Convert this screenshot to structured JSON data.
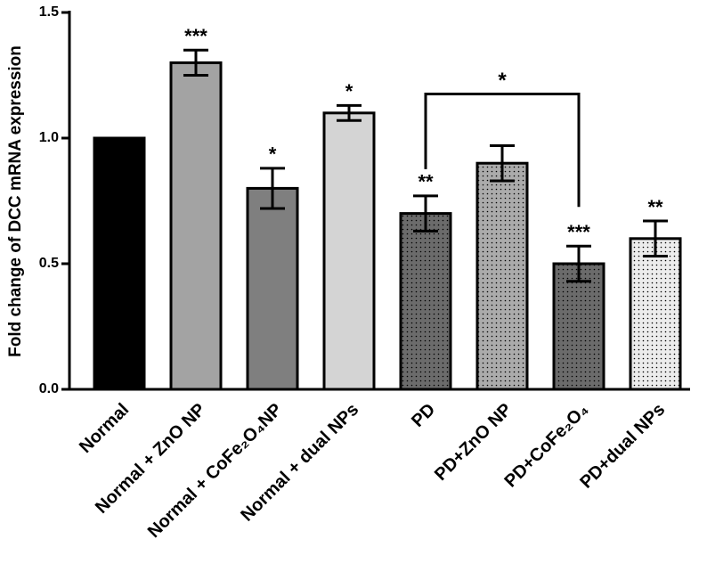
{
  "chart_data": {
    "type": "bar",
    "y_label": "Fold change of DCC mRNA expression",
    "categories": [
      "Normal",
      "Normal + ZnO NP",
      "Normal + CoFe₂O₄NP",
      "Normal + dual NPs",
      "PD",
      "PD+ZnO NP",
      "PD+CoFe₂O₄",
      "PD+dual NPs"
    ],
    "values": [
      1.0,
      1.3,
      0.8,
      1.1,
      0.7,
      0.9,
      0.5,
      0.6
    ],
    "errors": [
      null,
      0.05,
      0.08,
      0.03,
      0.07,
      0.07,
      0.07,
      0.07
    ],
    "annotations": [
      "",
      "***",
      "*",
      "*",
      "**",
      "",
      "***",
      "**"
    ],
    "colors": [
      "#000000",
      "#a3a3a3",
      "#7f7f7f",
      "#d4d4d4",
      "#6b6b6b",
      "#ababab",
      "#6b6b6b",
      "#ececec"
    ],
    "patterns": [
      "none",
      "none",
      "none",
      "none",
      "dots",
      "dots",
      "dots",
      "dots"
    ],
    "bracket": {
      "from": 4,
      "to": 6,
      "label": "*"
    },
    "ylim": [
      0,
      1.5
    ],
    "yticks": [
      {
        "value": 0,
        "label": "0.0"
      },
      0.5,
      {
        "value": 1,
        "label": "1.0"
      },
      1.5
    ]
  }
}
